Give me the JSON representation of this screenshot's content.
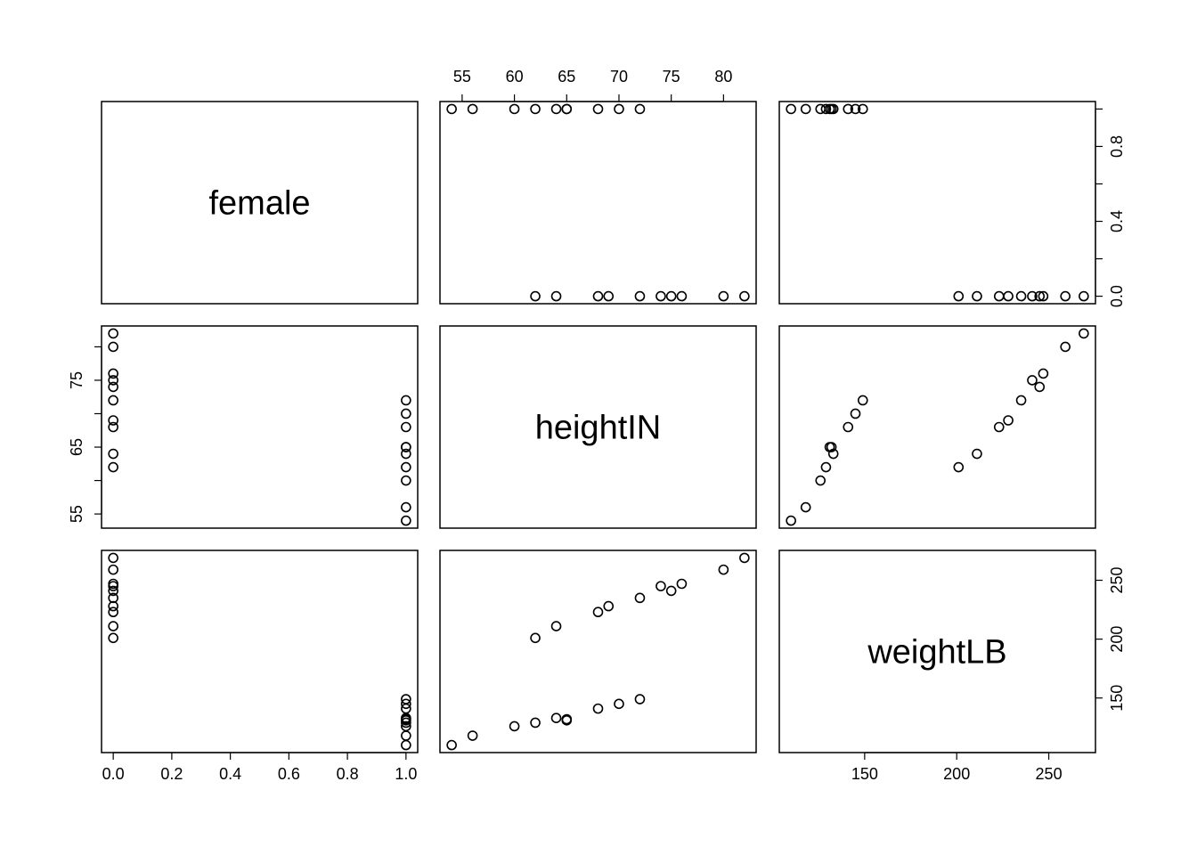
{
  "chart_data": {
    "type": "scatter",
    "title": "",
    "variables": [
      "female",
      "heightIN",
      "weightLB"
    ],
    "grid": false,
    "observations": {
      "female": [
        1,
        1,
        1,
        1,
        1,
        1,
        1,
        1,
        1,
        1,
        0,
        0,
        0,
        0,
        0,
        0,
        0,
        0,
        0,
        0
      ],
      "heightIN": [
        54,
        56,
        60,
        62,
        64,
        65,
        65,
        68,
        70,
        72,
        62,
        64,
        68,
        69,
        72,
        74,
        75,
        76,
        80,
        82
      ],
      "weightLB": [
        110,
        118,
        126,
        129,
        133,
        131,
        132,
        141,
        145,
        149,
        201,
        211,
        223,
        228,
        235,
        245,
        241,
        247,
        259,
        269
      ]
    },
    "axes": {
      "female": {
        "ticks": [
          0,
          0.2,
          0.4,
          0.6,
          0.8,
          1.0
        ],
        "bottom_labels": [
          "0.0",
          "0.2",
          "0.4",
          "0.6",
          "0.8",
          "1.0"
        ],
        "side_ticks": [
          0,
          0.2,
          0.4,
          0.6,
          0.8,
          1.0
        ],
        "side_labels": [
          "0.0",
          "",
          "0.4",
          "",
          "0.8",
          ""
        ]
      },
      "heightIN": {
        "ticks": [
          55,
          60,
          65,
          70,
          75,
          80
        ],
        "top_labels": [
          "55",
          "60",
          "65",
          "70",
          "75",
          "80"
        ],
        "side_labels": [
          "55",
          "",
          "65",
          "",
          "75",
          ""
        ]
      },
      "weightLB": {
        "ticks": [
          150,
          200,
          250
        ],
        "bottom_labels": [
          "150",
          "200",
          "250"
        ],
        "side_labels": [
          "150",
          "200",
          "250"
        ]
      }
    },
    "colors": {
      "points": "#000000",
      "frame": "#000000"
    }
  }
}
